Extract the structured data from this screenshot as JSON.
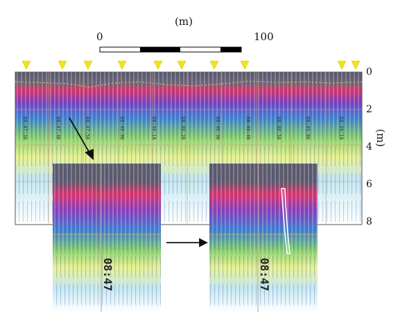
{
  "scale_bar": {
    "unit": "(m)",
    "start_label": "0",
    "end_label": "100"
  },
  "depth_axis": {
    "unit": "(m)",
    "ticks": [
      "0",
      "2",
      "4",
      "6",
      "8"
    ]
  },
  "markers": {
    "count": 11,
    "color": "#f5e60a"
  },
  "time_labels": [
    "08:47:36",
    "08:47:46",
    "08:47:56",
    "08:48:06",
    "08:48:16",
    "08:48:26",
    "08:48:36",
    "08:48:46",
    "08:48:56",
    "08:49:06",
    "08:49:16"
  ],
  "inset_labels": {
    "left": "08:47",
    "right": "08:47"
  },
  "colors": {
    "water": "#5a5a6a",
    "grid": "#c9a070",
    "arrow": "#111111"
  }
}
